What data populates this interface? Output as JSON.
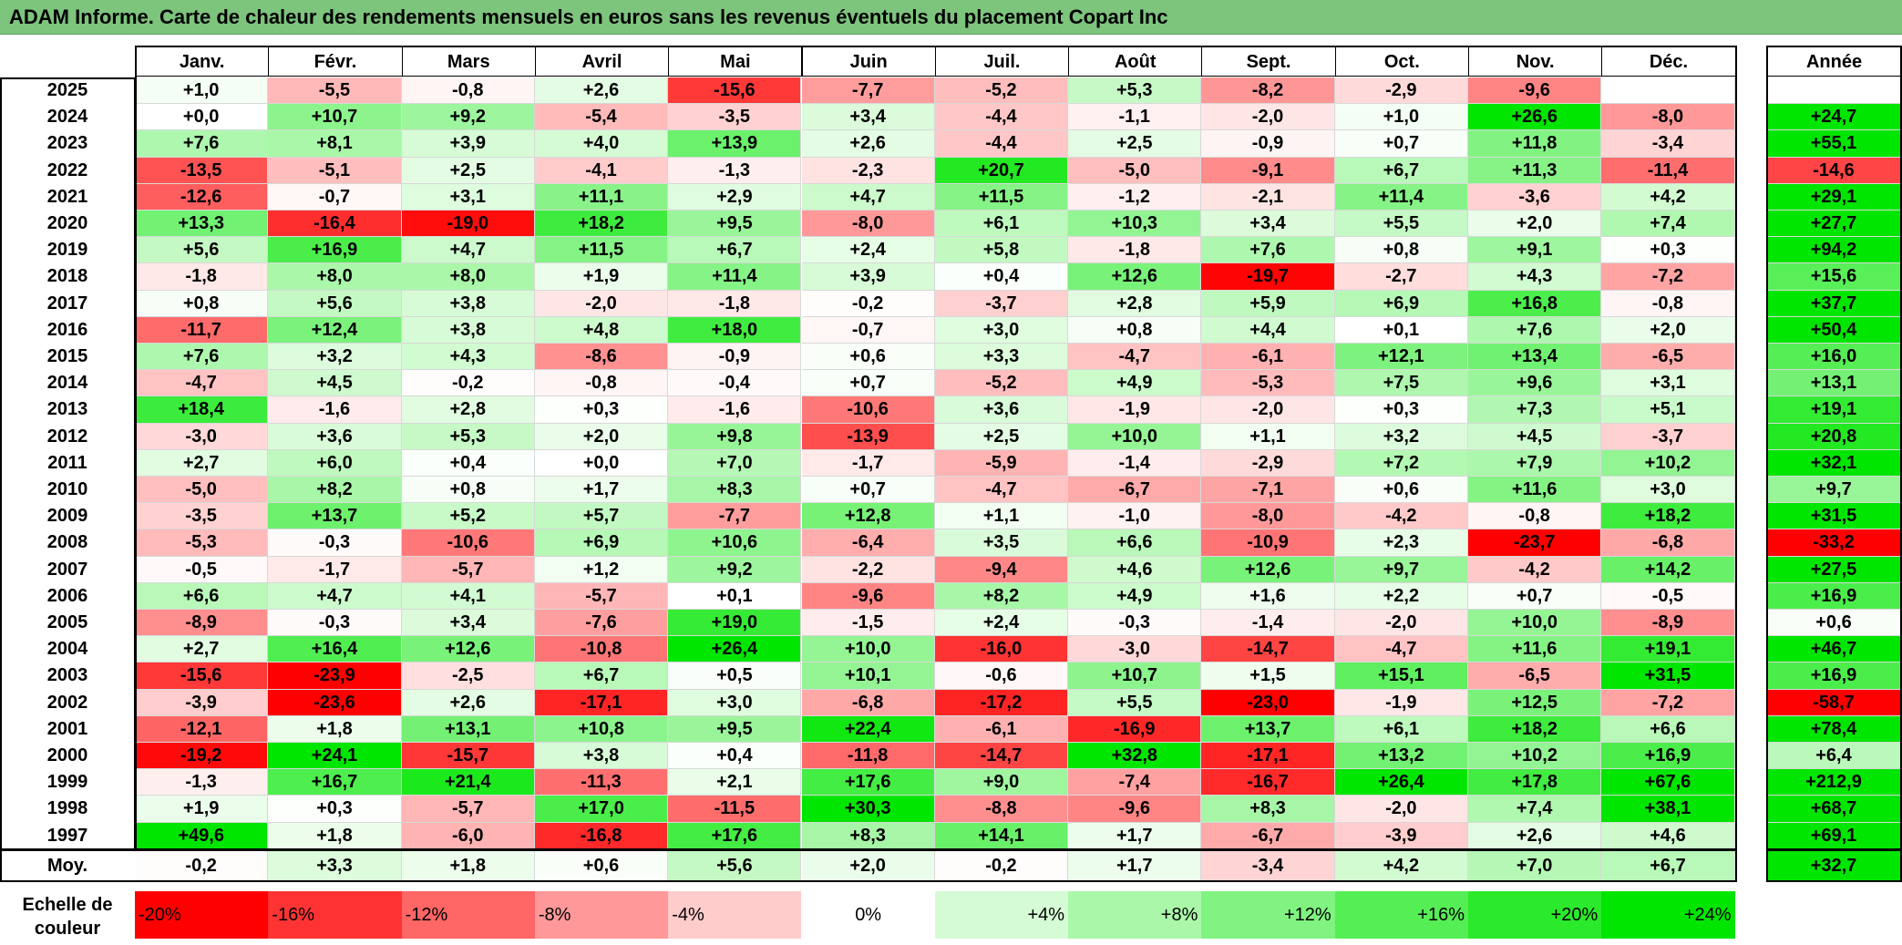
{
  "title": "ADAM Informe. Carte de chaleur des rendements mensuels en euros sans les revenus éventuels du placement Copart Inc",
  "chart_data": {
    "type": "heatmap",
    "columns": [
      "Janv.",
      "Févr.",
      "Mars",
      "Avril",
      "Mai",
      "Juin",
      "Juil.",
      "Août",
      "Sept.",
      "Oct.",
      "Nov.",
      "Déc."
    ],
    "year_column": "Année",
    "rows": [
      {
        "year": "2025",
        "values": [
          1.0,
          -5.5,
          -0.8,
          2.6,
          -15.6,
          -7.7,
          -5.2,
          5.3,
          -8.2,
          -2.9,
          -9.6,
          null
        ],
        "annual": null
      },
      {
        "year": "2024",
        "values": [
          0.0,
          10.7,
          9.2,
          -5.4,
          -3.5,
          3.4,
          -4.4,
          -1.1,
          -2.0,
          1.0,
          26.6,
          -8.0
        ],
        "annual": 24.7
      },
      {
        "year": "2023",
        "values": [
          7.6,
          8.1,
          3.9,
          4.0,
          13.9,
          2.6,
          -4.4,
          2.5,
          -0.9,
          0.7,
          11.8,
          -3.4
        ],
        "annual": 55.1
      },
      {
        "year": "2022",
        "values": [
          -13.5,
          -5.1,
          2.5,
          -4.1,
          -1.3,
          -2.3,
          20.7,
          -5.0,
          -9.1,
          6.7,
          11.3,
          -11.4
        ],
        "annual": -14.6
      },
      {
        "year": "2021",
        "values": [
          -12.6,
          -0.7,
          3.1,
          11.1,
          2.9,
          4.7,
          11.5,
          -1.2,
          -2.1,
          11.4,
          -3.6,
          4.2
        ],
        "annual": 29.1
      },
      {
        "year": "2020",
        "values": [
          13.3,
          -16.4,
          -19.0,
          18.2,
          9.5,
          -8.0,
          6.1,
          10.3,
          3.4,
          5.5,
          2.0,
          7.4
        ],
        "annual": 27.7
      },
      {
        "year": "2019",
        "values": [
          5.6,
          16.9,
          4.7,
          11.5,
          6.7,
          2.4,
          5.8,
          -1.8,
          7.6,
          0.8,
          9.1,
          0.3
        ],
        "annual": 94.2
      },
      {
        "year": "2018",
        "values": [
          -1.8,
          8.0,
          8.0,
          1.9,
          11.4,
          3.9,
          0.4,
          12.6,
          -19.7,
          -2.7,
          4.3,
          -7.2
        ],
        "annual": 15.6
      },
      {
        "year": "2017",
        "values": [
          0.8,
          5.6,
          3.8,
          -2.0,
          -1.8,
          -0.2,
          -3.7,
          2.8,
          5.9,
          6.9,
          16.8,
          -0.8
        ],
        "annual": 37.7
      },
      {
        "year": "2016",
        "values": [
          -11.7,
          12.4,
          3.8,
          4.8,
          18.0,
          -0.7,
          3.0,
          0.8,
          4.4,
          0.1,
          7.6,
          2.0
        ],
        "annual": 50.4
      },
      {
        "year": "2015",
        "values": [
          7.6,
          3.2,
          4.3,
          -8.6,
          -0.9,
          0.6,
          3.3,
          -4.7,
          -6.1,
          12.1,
          13.4,
          -6.5
        ],
        "annual": 16.0
      },
      {
        "year": "2014",
        "values": [
          -4.7,
          4.5,
          -0.2,
          -0.8,
          -0.4,
          0.7,
          -5.2,
          4.9,
          -5.3,
          7.5,
          9.6,
          3.1
        ],
        "annual": 13.1
      },
      {
        "year": "2013",
        "values": [
          18.4,
          -1.6,
          2.8,
          0.3,
          -1.6,
          -10.6,
          3.6,
          -1.9,
          -2.0,
          0.3,
          7.3,
          5.1
        ],
        "annual": 19.1
      },
      {
        "year": "2012",
        "values": [
          -3.0,
          3.6,
          5.3,
          2.0,
          9.8,
          -13.9,
          2.5,
          10.0,
          1.1,
          3.2,
          4.5,
          -3.7
        ],
        "annual": 20.8
      },
      {
        "year": "2011",
        "values": [
          2.7,
          6.0,
          0.4,
          0.0,
          7.0,
          -1.7,
          -5.9,
          -1.4,
          -2.9,
          7.2,
          7.9,
          10.2
        ],
        "annual": 32.1
      },
      {
        "year": "2010",
        "values": [
          -5.0,
          8.2,
          0.8,
          1.7,
          8.3,
          0.7,
          -4.7,
          -6.7,
          -7.1,
          0.6,
          11.6,
          3.0
        ],
        "annual": 9.7
      },
      {
        "year": "2009",
        "values": [
          -3.5,
          13.7,
          5.2,
          5.7,
          -7.7,
          12.8,
          1.1,
          -1.0,
          -8.0,
          -4.2,
          -0.8,
          18.2
        ],
        "annual": 31.5
      },
      {
        "year": "2008",
        "values": [
          -5.3,
          -0.3,
          -10.6,
          6.9,
          10.6,
          -6.4,
          3.5,
          6.6,
          -10.9,
          2.3,
          -23.7,
          -6.8
        ],
        "annual": -33.2
      },
      {
        "year": "2007",
        "values": [
          -0.5,
          -1.7,
          -5.7,
          1.2,
          9.2,
          -2.2,
          -9.4,
          4.6,
          12.6,
          9.7,
          -4.2,
          14.2
        ],
        "annual": 27.5
      },
      {
        "year": "2006",
        "values": [
          6.6,
          4.7,
          4.1,
          -5.7,
          0.1,
          -9.6,
          8.2,
          4.9,
          1.6,
          2.2,
          0.7,
          -0.5
        ],
        "annual": 16.9
      },
      {
        "year": "2005",
        "values": [
          -8.9,
          -0.3,
          3.4,
          -7.6,
          19.0,
          -1.5,
          2.4,
          -0.3,
          -1.4,
          -2.0,
          10.0,
          -8.9
        ],
        "annual": 0.6
      },
      {
        "year": "2004",
        "values": [
          2.7,
          16.4,
          12.6,
          -10.8,
          26.4,
          10.0,
          -16.0,
          -3.0,
          -14.7,
          -4.7,
          11.6,
          19.1
        ],
        "annual": 46.7
      },
      {
        "year": "2003",
        "values": [
          -15.6,
          -23.9,
          -2.5,
          6.7,
          0.5,
          10.1,
          -0.6,
          10.7,
          1.5,
          15.1,
          -6.5,
          31.5
        ],
        "annual": 16.9
      },
      {
        "year": "2002",
        "values": [
          -3.9,
          -23.6,
          2.6,
          -17.1,
          3.0,
          -6.8,
          -17.2,
          5.5,
          -23.0,
          -1.9,
          12.5,
          -7.2
        ],
        "annual": -58.7
      },
      {
        "year": "2001",
        "values": [
          -12.1,
          1.8,
          13.1,
          10.8,
          9.5,
          22.4,
          -6.1,
          -16.9,
          13.7,
          6.1,
          18.2,
          6.6
        ],
        "annual": 78.4
      },
      {
        "year": "2000",
        "values": [
          -19.2,
          24.1,
          -15.7,
          3.8,
          0.4,
          -11.8,
          -14.7,
          32.8,
          -17.1,
          13.2,
          10.2,
          16.9
        ],
        "annual": 6.4
      },
      {
        "year": "1999",
        "values": [
          -1.3,
          16.7,
          21.4,
          -11.3,
          2.1,
          17.6,
          9.0,
          -7.4,
          -16.7,
          26.4,
          17.8,
          67.6
        ],
        "annual": 212.9
      },
      {
        "year": "1998",
        "values": [
          1.9,
          0.3,
          -5.7,
          17.0,
          -11.5,
          30.3,
          -8.8,
          -9.6,
          8.3,
          -2.0,
          7.4,
          38.1
        ],
        "annual": 68.7
      },
      {
        "year": "1997",
        "values": [
          49.6,
          1.8,
          -6.0,
          -16.8,
          17.6,
          8.3,
          14.1,
          1.7,
          -6.7,
          -3.9,
          2.6,
          4.6
        ],
        "annual": 69.1
      }
    ],
    "average": {
      "label": "Moy.",
      "values": [
        -0.2,
        3.3,
        1.8,
        0.6,
        5.6,
        2.0,
        -0.2,
        1.7,
        -3.4,
        4.2,
        7.0,
        6.7
      ],
      "annual": 32.7
    },
    "scale": {
      "label_line1": "Echelle de",
      "label_line2": "couleur",
      "steps": [
        {
          "label": "-20%",
          "value": -20
        },
        {
          "label": "-16%",
          "value": -16
        },
        {
          "label": "-12%",
          "value": -12
        },
        {
          "label": "-8%",
          "value": -8
        },
        {
          "label": "-4%",
          "value": -4
        },
        {
          "label": "0%",
          "value": 0
        },
        {
          "label": "+4%",
          "value": 4
        },
        {
          "label": "+8%",
          "value": 8
        },
        {
          "label": "+12%",
          "value": 12
        },
        {
          "label": "+16%",
          "value": 16
        },
        {
          "label": "+20%",
          "value": 20
        },
        {
          "label": "+24%",
          "value": 24
        }
      ]
    },
    "colors": {
      "negative_max": "#ff0000",
      "neutral": "#ffffff",
      "positive_max": "#00e600",
      "title_bar": "#7dc47d"
    }
  }
}
